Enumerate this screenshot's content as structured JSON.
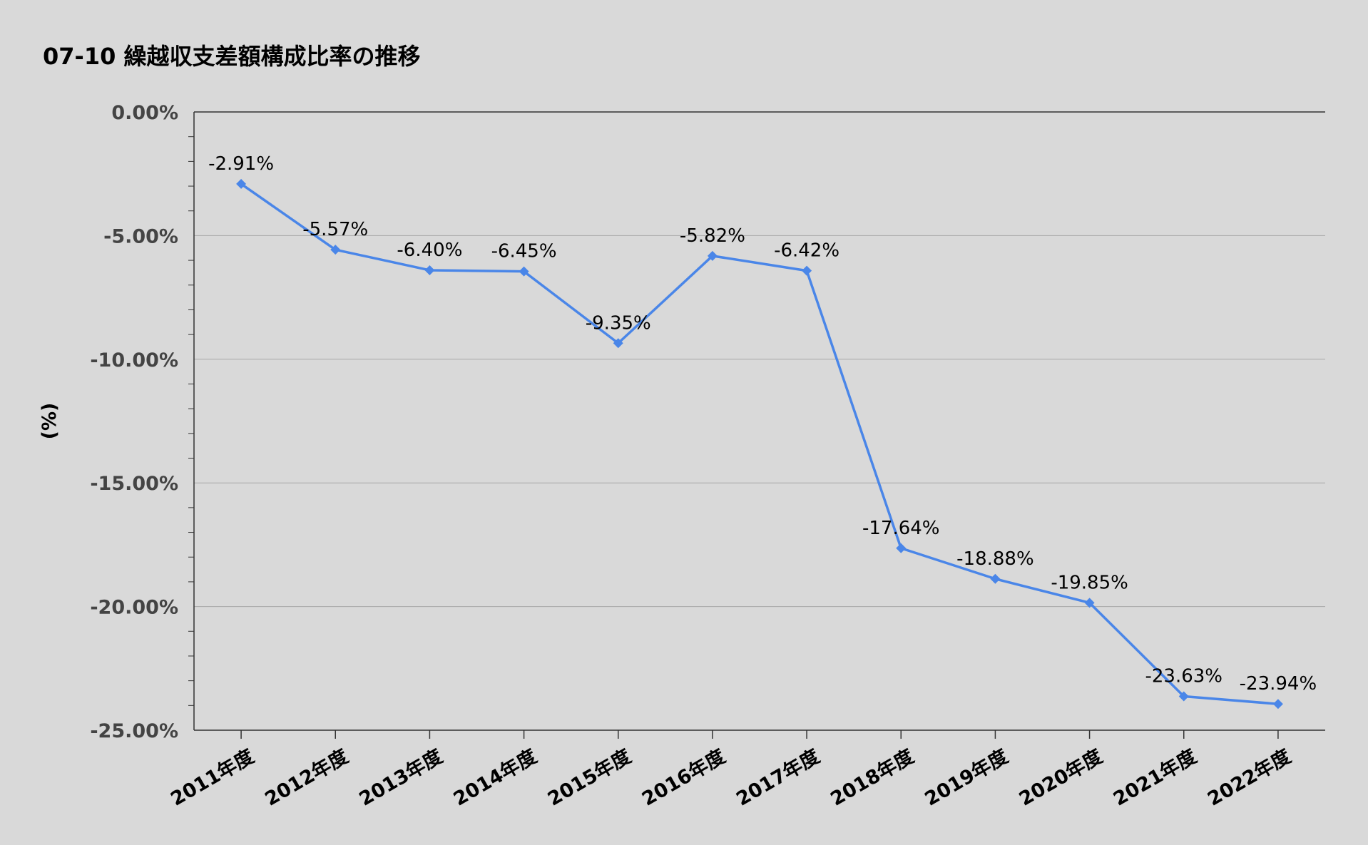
{
  "chart_data": {
    "type": "line",
    "title": "07-10 繰越収支差額構成比率の推移",
    "ylabel": "(%)",
    "xlabel": "",
    "categories": [
      "2011年度",
      "2012年度",
      "2013年度",
      "2014年度",
      "2015年度",
      "2016年度",
      "2017年度",
      "2018年度",
      "2019年度",
      "2020年度",
      "2021年度",
      "2022年度"
    ],
    "series": [
      {
        "values": [
          -2.91,
          -5.57,
          -6.4,
          -6.45,
          -9.35,
          -5.82,
          -6.42,
          -17.64,
          -18.88,
          -19.85,
          -23.63,
          -23.94
        ],
        "labels": [
          "-2.91%",
          "-5.57%",
          "-6.40%",
          "-6.45%",
          "-9.35%",
          "-5.82%",
          "-6.42%",
          "-17.64%",
          "-18.88%",
          "-19.85%",
          "-23.63%",
          "-23.94%"
        ],
        "color": "#4a86e8"
      }
    ],
    "ylim": [
      -25,
      0
    ],
    "yticks": [
      0,
      -5,
      -10,
      -15,
      -20,
      -25
    ],
    "ytick_labels": [
      "0.00%",
      "-5.00%",
      "-10.00%",
      "-15.00%",
      "-20.00%",
      "-25.00%"
    ],
    "grid": true,
    "legend": "none"
  }
}
